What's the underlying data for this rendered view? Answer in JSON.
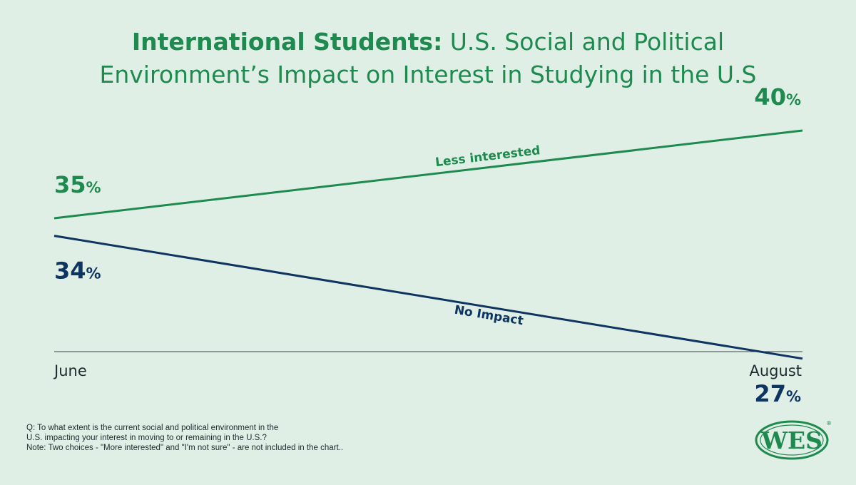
{
  "title": {
    "bold": "International Students:",
    "rest_line1": " U.S. Social and Political",
    "line2": "Environment’s Impact on Interest in Studying in the U.S"
  },
  "chart_data": {
    "type": "line",
    "categories": [
      "June",
      "August"
    ],
    "series": [
      {
        "name": "Less interested",
        "values": [
          35,
          40
        ],
        "color": "#1f8a4f"
      },
      {
        "name": "No Impact",
        "values": [
          34,
          27
        ],
        "color": "#0e3460"
      }
    ],
    "value_suffix": "%",
    "ylim": [
      20,
      45
    ],
    "grid": false,
    "legend": "inline"
  },
  "footnote": {
    "line1": "Q: To what extent is the current social and political environment in the",
    "line2": "U.S. impacting your interest in moving to or remaining in the U.S.?",
    "line3": "Note: Two choices - \"More interested\" and \"I'm not sure\" - are not included in the chart.."
  },
  "logo": {
    "text": "WES",
    "registered": "®",
    "color": "#1f8a4f"
  }
}
